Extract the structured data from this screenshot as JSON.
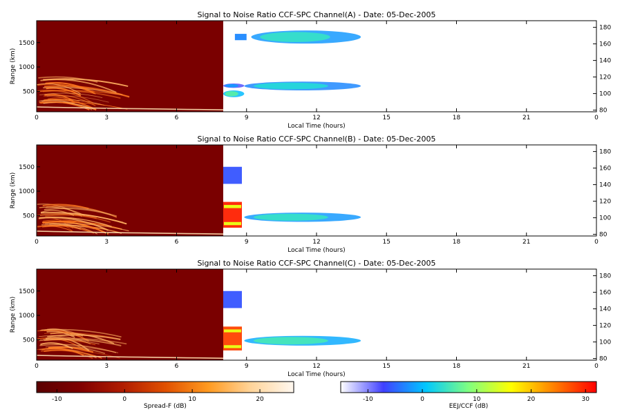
{
  "chart_data": [
    {
      "type": "heatmap",
      "title": "Signal to Noise Ratio CCF-SPC Channel(A) - Date: 05-Dec-2005",
      "xlabel": "Local Time (hours)",
      "ylabel": "Range (km)",
      "xlim": [
        0,
        24
      ],
      "ylim": [
        80,
        1950
      ],
      "x_ticks": [
        "0",
        "3",
        "6",
        "9",
        "12",
        "15",
        "18",
        "21",
        "0"
      ],
      "y_ticks": [
        "500",
        "1000",
        "1500"
      ],
      "y_ticks_values": [
        500,
        1000,
        1500
      ],
      "y2_ticks": [
        "80",
        "100",
        "120",
        "140",
        "160",
        "180"
      ],
      "y2_ticks_values": [
        80,
        100,
        120,
        140,
        160,
        180
      ],
      "spread_f_region": [
        0,
        8
      ],
      "features": [
        {
          "kind": "eej",
          "x0": 8.0,
          "x1": 8.9,
          "y0": 380,
          "y1": 520,
          "level": 6
        },
        {
          "kind": "eej",
          "x0": 8.0,
          "x1": 8.9,
          "y0": 570,
          "y1": 660,
          "level": -2
        },
        {
          "kind": "eej",
          "x0": 8.9,
          "x1": 13.9,
          "y0": 520,
          "y1": 700,
          "level": 3
        },
        {
          "kind": "eej",
          "x0": 9.2,
          "x1": 13.9,
          "y0": 1480,
          "y1": 1750,
          "level": 4
        },
        {
          "kind": "eej",
          "x0": 8.5,
          "x1": 9.0,
          "y0": 1550,
          "y1": 1680,
          "level": -3
        }
      ]
    },
    {
      "type": "heatmap",
      "title": "Signal to Noise Ratio CCF-SPC Channel(B) - Date: 05-Dec-2005",
      "xlabel": "Local Time (hours)",
      "ylabel": "Range (km)",
      "xlim": [
        0,
        24
      ],
      "ylim": [
        80,
        1950
      ],
      "x_ticks": [
        "0",
        "3",
        "6",
        "9",
        "12",
        "15",
        "18",
        "21",
        "0"
      ],
      "y_ticks": [
        "500",
        "1000",
        "1500"
      ],
      "y_ticks_values": [
        500,
        1000,
        1500
      ],
      "y2_ticks": [
        "80",
        "100",
        "120",
        "140",
        "160",
        "180"
      ],
      "y2_ticks_values": [
        80,
        100,
        120,
        140,
        160,
        180
      ],
      "spread_f_region": [
        0,
        8
      ],
      "features": [
        {
          "kind": "eej",
          "x0": 8.0,
          "x1": 8.8,
          "y0": 250,
          "y1": 780,
          "level": 30
        },
        {
          "kind": "eej",
          "x0": 8.9,
          "x1": 13.9,
          "y0": 370,
          "y1": 560,
          "level": 4
        },
        {
          "kind": "eej",
          "x0": 8.0,
          "x1": 8.8,
          "y0": 1150,
          "y1": 1500,
          "level": -6
        }
      ]
    },
    {
      "type": "heatmap",
      "title": "Signal to Noise Ratio CCF-SPC Channel(C) - Date: 05-Dec-2005",
      "xlabel": "Local Time (hours)",
      "ylabel": "Range (km)",
      "xlim": [
        0,
        24
      ],
      "ylim": [
        80,
        1950
      ],
      "x_ticks": [
        "0",
        "3",
        "6",
        "9",
        "12",
        "15",
        "18",
        "21",
        "0"
      ],
      "y_ticks": [
        "500",
        "1000",
        "1500"
      ],
      "y_ticks_values": [
        500,
        1000,
        1500
      ],
      "y2_ticks": [
        "80",
        "100",
        "120",
        "140",
        "160",
        "180"
      ],
      "y2_ticks_values": [
        80,
        100,
        120,
        140,
        160,
        180
      ],
      "spread_f_region": [
        0,
        8
      ],
      "features": [
        {
          "kind": "eej",
          "x0": 8.0,
          "x1": 8.8,
          "y0": 280,
          "y1": 770,
          "level": 28
        },
        {
          "kind": "eej",
          "x0": 8.9,
          "x1": 13.9,
          "y0": 380,
          "y1": 580,
          "level": 5
        },
        {
          "kind": "eej",
          "x0": 8.0,
          "x1": 8.8,
          "y0": 1150,
          "y1": 1500,
          "level": -6
        }
      ]
    }
  ],
  "colorbars": [
    {
      "label": "Spread-F (dB)",
      "range": [
        -13,
        25
      ],
      "ticks": [
        "-10",
        "0",
        "10",
        "20"
      ],
      "ticks_values": [
        -10,
        0,
        10,
        20
      ],
      "colors": [
        "#5a0000",
        "#7f0000",
        "#b01c00",
        "#e05000",
        "#ff9a20",
        "#ffd49a",
        "#fff8f0"
      ]
    },
    {
      "label": "EEJ/CCF (dB)",
      "range": [
        -15,
        32
      ],
      "ticks": [
        "-10",
        "0",
        "10",
        "20",
        "30"
      ],
      "ticks_values": [
        -10,
        0,
        10,
        20,
        30
      ],
      "colors": [
        "#ffffff",
        "#4040ff",
        "#00c8ff",
        "#80ff80",
        "#ffff00",
        "#ff8000",
        "#ff0000"
      ]
    }
  ]
}
